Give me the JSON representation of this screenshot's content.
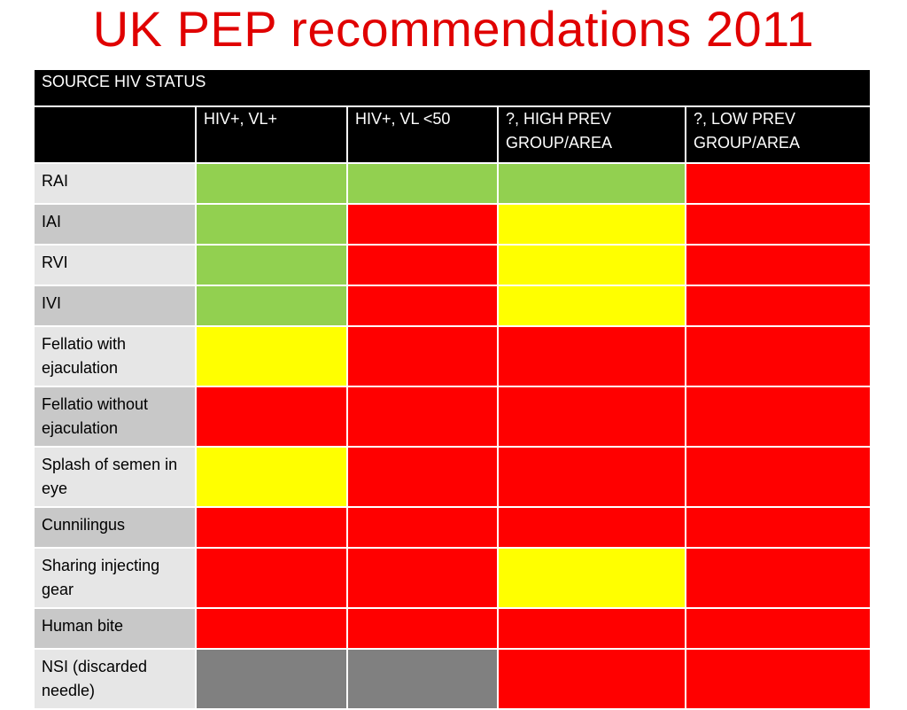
{
  "title": "UK PEP recommendations 2011",
  "table": {
    "banner": "SOURCE HIV STATUS",
    "corner": "",
    "columns": [
      "HIV+, VL+",
      "HIV+, VL <50",
      "?, HIGH PREV GROUP/AREA",
      "?, LOW PREV GROUP/AREA"
    ],
    "legend_colors": {
      "green": "#92d050",
      "yellow": "#ffff00",
      "red": "#ff0000",
      "grey": "#808080"
    },
    "rows": [
      {
        "label": "RAI",
        "cells": [
          "green",
          "green",
          "green",
          "red"
        ]
      },
      {
        "label": "IAI",
        "cells": [
          "green",
          "red",
          "yellow",
          "red"
        ]
      },
      {
        "label": "RVI",
        "cells": [
          "green",
          "red",
          "yellow",
          "red"
        ]
      },
      {
        "label": "IVI",
        "cells": [
          "green",
          "red",
          "yellow",
          "red"
        ]
      },
      {
        "label": "Fellatio with ejaculation",
        "cells": [
          "yellow",
          "red",
          "red",
          "red"
        ]
      },
      {
        "label": "Fellatio without ejaculation",
        "cells": [
          "red",
          "red",
          "red",
          "red"
        ]
      },
      {
        "label": "Splash of semen in eye",
        "cells": [
          "yellow",
          "red",
          "red",
          "red"
        ]
      },
      {
        "label": "Cunnilingus",
        "cells": [
          "red",
          "red",
          "red",
          "red"
        ]
      },
      {
        "label": "Sharing injecting gear",
        "cells": [
          "red",
          "red",
          "yellow",
          "red"
        ]
      },
      {
        "label": "Human bite",
        "cells": [
          "red",
          "red",
          "red",
          "red"
        ]
      },
      {
        "label": "NSI (discarded needle)",
        "cells": [
          "grey",
          "grey",
          "red",
          "red"
        ]
      }
    ]
  }
}
